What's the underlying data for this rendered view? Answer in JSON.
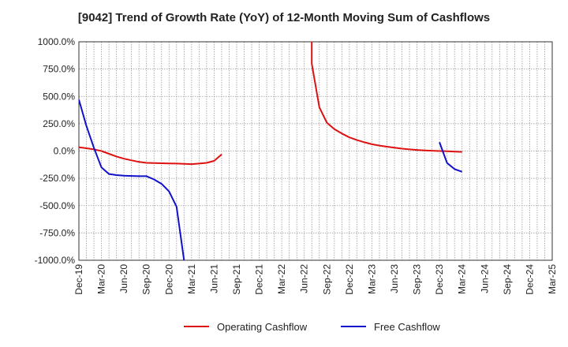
{
  "chart_data": {
    "type": "line",
    "title": "[9042]  Trend of Growth Rate (YoY) of 12-Month Moving Sum of Cashflows",
    "xlabel": "",
    "ylabel": "",
    "ylim": [
      -1000,
      1000
    ],
    "yticks": [
      1000,
      750,
      500,
      250,
      0,
      -250,
      -500,
      -750,
      -1000
    ],
    "ytick_labels": [
      "1000.0%",
      "750.0%",
      "500.0%",
      "250.0%",
      "0.0%",
      "-250.0%",
      "-500.0%",
      "-750.0%",
      "-1000.0%"
    ],
    "x_start": "Dec-19",
    "x_end": "Mar-25",
    "xtick_labels": [
      "Dec-19",
      "Mar-20",
      "Jun-20",
      "Sep-20",
      "Dec-20",
      "Mar-21",
      "Jun-21",
      "Sep-21",
      "Dec-21",
      "Mar-22",
      "Jun-22",
      "Sep-22",
      "Dec-22",
      "Mar-23",
      "Jun-23",
      "Sep-23",
      "Dec-23",
      "Mar-24",
      "Jun-24",
      "Sep-24",
      "Dec-24",
      "Mar-25"
    ],
    "grid": true,
    "legend_position": "bottom",
    "series": [
      {
        "name": "Operating Cashflow",
        "color": "#dd1111",
        "segments": [
          [
            [
              "Dec-19",
              35
            ],
            [
              "Jan-20",
              25
            ],
            [
              "Feb-20",
              15
            ],
            [
              "Mar-20",
              0
            ],
            [
              "Apr-20",
              -25
            ],
            [
              "May-20",
              -50
            ],
            [
              "Jun-20",
              -70
            ],
            [
              "Jul-20",
              -85
            ],
            [
              "Aug-20",
              -100
            ],
            [
              "Sep-20",
              -108
            ],
            [
              "Oct-20",
              -110
            ],
            [
              "Nov-20",
              -112
            ],
            [
              "Dec-20",
              -113
            ],
            [
              "Jan-21",
              -115
            ],
            [
              "Feb-21",
              -118
            ],
            [
              "Mar-21",
              -120
            ],
            [
              "Apr-21",
              -115
            ],
            [
              "May-21",
              -108
            ],
            [
              "Jun-21",
              -90
            ],
            [
              "Jul-21",
              -30
            ]
          ],
          [
            [
              "Jul-22",
              1000
            ],
            [
              "Jul-22",
              800
            ],
            [
              "Aug-22",
              400
            ],
            [
              "Sep-22",
              260
            ],
            [
              "Oct-22",
              200
            ],
            [
              "Nov-22",
              160
            ],
            [
              "Dec-22",
              125
            ],
            [
              "Jan-23",
              100
            ],
            [
              "Feb-23",
              80
            ],
            [
              "Mar-23",
              62
            ],
            [
              "Apr-23",
              50
            ],
            [
              "May-23",
              40
            ],
            [
              "Jun-23",
              30
            ],
            [
              "Jul-23",
              22
            ],
            [
              "Aug-23",
              15
            ],
            [
              "Sep-23",
              10
            ],
            [
              "Oct-23",
              6
            ],
            [
              "Nov-23",
              3
            ],
            [
              "Dec-23",
              0
            ],
            [
              "Jan-24",
              -2
            ],
            [
              "Feb-24",
              -5
            ],
            [
              "Mar-24",
              -8
            ]
          ]
        ]
      },
      {
        "name": "Free Cashflow",
        "color": "#1111cc",
        "segments": [
          [
            [
              "Dec-19",
              470
            ],
            [
              "Jan-20",
              230
            ],
            [
              "Feb-20",
              30
            ],
            [
              "Mar-20",
              -150
            ],
            [
              "Apr-20",
              -210
            ],
            [
              "May-20",
              -220
            ],
            [
              "Jun-20",
              -225
            ],
            [
              "Jul-20",
              -228
            ],
            [
              "Aug-20",
              -230
            ],
            [
              "Sep-20",
              -230
            ],
            [
              "Oct-20",
              -260
            ],
            [
              "Nov-20",
              -300
            ],
            [
              "Dec-20",
              -370
            ],
            [
              "Jan-21",
              -510
            ],
            [
              "Feb-21",
              -1000
            ]
          ],
          [
            [
              "Dec-23",
              80
            ],
            [
              "Jan-24",
              -110
            ],
            [
              "Feb-24",
              -165
            ],
            [
              "Mar-24",
              -190
            ]
          ]
        ]
      }
    ]
  }
}
